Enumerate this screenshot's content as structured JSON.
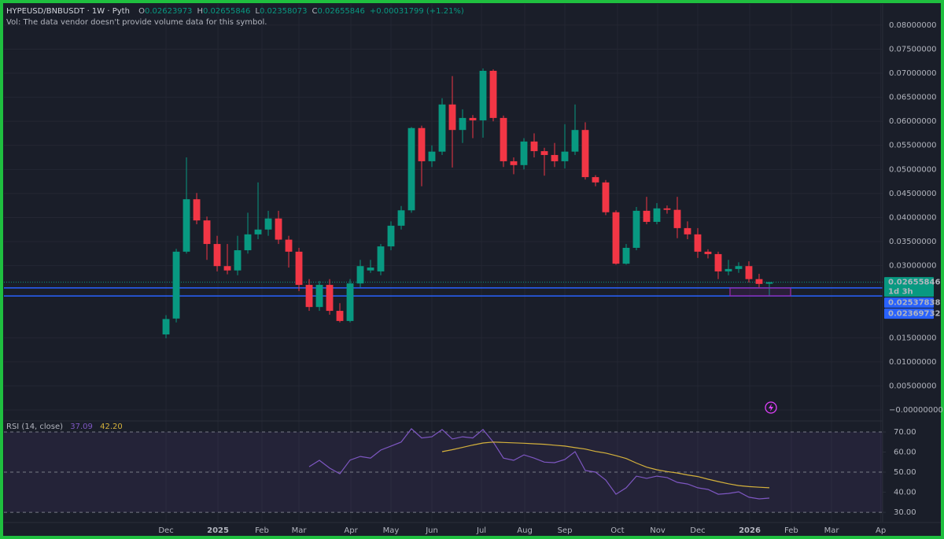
{
  "chart_data": {
    "type": "candlestick",
    "symbol": "HYPEUSD/BNBUSDT · 1W · Pyth",
    "ohlc_legend": [
      {
        "label": "O",
        "value": "0.02623973"
      },
      {
        "label": "H",
        "value": "0.02655846"
      },
      {
        "label": "L",
        "value": "0.02358073"
      },
      {
        "label": "C",
        "value": "0.02655846"
      }
    ],
    "change": "+0.00031799 (+1.21%)",
    "volume_note": "Vol: The data vendor doesn't provide volume data for this symbol.",
    "up_color": "#089981",
    "down_color": "#f23645",
    "open": [
      0.0157,
      0.019,
      0.0329,
      0.0438,
      0.0394,
      0.0345,
      0.0299,
      0.029,
      0.0332,
      0.0365,
      0.0375,
      0.0398,
      0.0354,
      0.0329,
      0.026,
      0.0214,
      0.026,
      0.0206,
      0.0185,
      0.0263,
      0.029,
      0.0288,
      0.034,
      0.0383,
      0.0415,
      0.0586,
      0.0517,
      0.0537,
      0.0635,
      0.0582,
      0.0607,
      0.0602,
      0.0705,
      0.0607,
      0.0517,
      0.0509,
      0.0558,
      0.0538,
      0.053,
      0.0517,
      0.0537,
      0.0582,
      0.0484,
      0.0473,
      0.0411,
      0.0304,
      0.0337,
      0.0414,
      0.0391,
      0.0419,
      0.0416,
      0.0378,
      0.0365,
      0.0329,
      0.0324,
      0.0288,
      0.0293,
      0.0299,
      0.0272,
      0.02623973
    ],
    "high": [
      0.0197,
      0.0335,
      0.0525,
      0.0451,
      0.0402,
      0.0362,
      0.0345,
      0.0362,
      0.041,
      0.0473,
      0.0414,
      0.0414,
      0.0362,
      0.0337,
      0.0272,
      0.0268,
      0.0272,
      0.0222,
      0.0272,
      0.0312,
      0.0312,
      0.0345,
      0.0392,
      0.0424,
      0.0588,
      0.0591,
      0.055,
      0.0648,
      0.0694,
      0.0625,
      0.0613,
      0.071,
      0.0708,
      0.0612,
      0.0525,
      0.0565,
      0.0575,
      0.0545,
      0.0555,
      0.0594,
      0.0635,
      0.0598,
      0.0488,
      0.0478,
      0.0415,
      0.0345,
      0.0422,
      0.0443,
      0.043,
      0.0425,
      0.0443,
      0.0392,
      0.0378,
      0.0334,
      0.0329,
      0.0312,
      0.0307,
      0.0309,
      0.0283,
      0.02655846
    ],
    "low": [
      0.0149,
      0.0182,
      0.0325,
      0.0386,
      0.0312,
      0.0288,
      0.0282,
      0.028,
      0.0325,
      0.0355,
      0.0362,
      0.0345,
      0.0296,
      0.0247,
      0.0206,
      0.0206,
      0.0198,
      0.0182,
      0.0182,
      0.0255,
      0.0285,
      0.028,
      0.0332,
      0.0375,
      0.041,
      0.0465,
      0.0505,
      0.053,
      0.0504,
      0.0555,
      0.0565,
      0.0566,
      0.06,
      0.0505,
      0.049,
      0.05,
      0.0525,
      0.0487,
      0.0505,
      0.0502,
      0.053,
      0.0479,
      0.0465,
      0.0405,
      0.0302,
      0.0302,
      0.0332,
      0.0386,
      0.0386,
      0.0408,
      0.0357,
      0.0355,
      0.0316,
      0.0315,
      0.0272,
      0.028,
      0.0285,
      0.0265,
      0.0255,
      0.02358073
    ],
    "close": [
      0.0189,
      0.0329,
      0.0438,
      0.0394,
      0.0345,
      0.0299,
      0.029,
      0.0332,
      0.0365,
      0.0375,
      0.0398,
      0.0354,
      0.0329,
      0.026,
      0.0214,
      0.026,
      0.0206,
      0.0185,
      0.0263,
      0.0299,
      0.0296,
      0.034,
      0.0383,
      0.0415,
      0.0586,
      0.0517,
      0.0537,
      0.0635,
      0.0582,
      0.0607,
      0.0602,
      0.0705,
      0.0607,
      0.0517,
      0.0509,
      0.0558,
      0.0538,
      0.053,
      0.0517,
      0.0537,
      0.0582,
      0.0484,
      0.0473,
      0.0411,
      0.0304,
      0.0337,
      0.0414,
      0.0391,
      0.0419,
      0.0416,
      0.0378,
      0.0365,
      0.0329,
      0.0324,
      0.0288,
      0.0293,
      0.0299,
      0.0272,
      0.0262,
      0.02655846
    ],
    "xlim": [
      -15.85,
      70.08
    ],
    "xticks": [
      {
        "value": 0,
        "label": "Dec"
      },
      {
        "value": 5.08,
        "label": "2025"
      },
      {
        "value": 9.38,
        "label": "Feb"
      },
      {
        "value": 13,
        "label": "Mar"
      },
      {
        "value": 18.08,
        "label": "Apr"
      },
      {
        "value": 22,
        "label": "May"
      },
      {
        "value": 26,
        "label": "Jun"
      },
      {
        "value": 30.85,
        "label": "Jul"
      },
      {
        "value": 35.08,
        "label": "Aug"
      },
      {
        "value": 39,
        "label": "Sep"
      },
      {
        "value": 44.15,
        "label": "Oct"
      },
      {
        "value": 48.08,
        "label": "Nov"
      },
      {
        "value": 52,
        "label": "Dec"
      },
      {
        "value": 57.08,
        "label": "2026"
      },
      {
        "value": 61.15,
        "label": "Feb"
      },
      {
        "value": 65.08,
        "label": "Mar"
      },
      {
        "value": 69.9,
        "label": "Ap"
      }
    ],
    "ylim": [
      -0.00229,
      0.0844
    ],
    "yticks": [
      {
        "value": 0.08,
        "label": "0.08000000"
      },
      {
        "value": 0.075,
        "label": "0.07500000"
      },
      {
        "value": 0.07,
        "label": "0.07000000"
      },
      {
        "value": 0.065,
        "label": "0.06500000"
      },
      {
        "value": 0.06,
        "label": "0.06000000"
      },
      {
        "value": 0.055,
        "label": "0.05500000"
      },
      {
        "value": 0.05,
        "label": "0.05000000"
      },
      {
        "value": 0.045,
        "label": "0.04500000"
      },
      {
        "value": 0.04,
        "label": "0.04000000"
      },
      {
        "value": 0.035,
        "label": "0.03500000"
      },
      {
        "value": 0.03,
        "label": "0.03000000"
      },
      {
        "value": 0.015,
        "label": "0.01500000"
      },
      {
        "value": 0.01,
        "label": "0.01000000"
      },
      {
        "value": 0.005,
        "label": "0.00500000"
      },
      {
        "value": 0,
        "label": "−0.00000000"
      }
    ],
    "grid": true,
    "current_price": {
      "value": 0.02655846,
      "label": "0.02655846",
      "countdown": "1d 3h",
      "color": "#089981"
    },
    "price_lines": [
      {
        "value": 0.02537838,
        "label": "0.02537838",
        "color": "#2962ff"
      },
      {
        "value": 0.02369732,
        "label": "0.02369732",
        "color": "#2962ff"
      }
    ],
    "rsi": {
      "title": "RSI (14, close)",
      "color": "#7e57c2",
      "values": [
        null,
        null,
        null,
        null,
        null,
        null,
        null,
        null,
        null,
        null,
        null,
        null,
        null,
        null,
        52.7,
        55.9,
        52,
        49.2,
        56,
        57.8,
        57,
        61,
        63,
        65,
        71.6,
        67,
        67.6,
        71.2,
        66.5,
        67.6,
        67,
        71.2,
        65,
        57,
        55.9,
        58.6,
        57,
        55,
        54.7,
        56.3,
        60.2,
        50.8,
        50,
        46.1,
        39,
        42.2,
        48,
        46.9,
        48,
        47.3,
        44.9,
        44.1,
        42.2,
        41.4,
        39,
        39.4,
        40.2,
        37.5,
        36.7,
        37.09
      ],
      "value_label": "37.09",
      "ma_color": "#d4b13c",
      "ma_values": [
        null,
        null,
        null,
        null,
        null,
        null,
        null,
        null,
        null,
        null,
        null,
        null,
        null,
        null,
        null,
        null,
        null,
        null,
        null,
        null,
        null,
        null,
        null,
        null,
        null,
        null,
        null,
        60.2,
        61.2,
        62.3,
        63.5,
        64.5,
        65,
        64.8,
        64.6,
        64.4,
        64.1,
        63.9,
        63.4,
        63,
        62.2,
        61.5,
        60.3,
        59.5,
        58.2,
        56.8,
        54.5,
        52.5,
        51.2,
        50.3,
        49.6,
        48.6,
        47.8,
        46.5,
        45.3,
        44.2,
        43.3,
        42.8,
        42.5,
        42.2
      ],
      "ma_value_label": "42.20",
      "ylim": [
        26.5,
        74.7
      ],
      "yticks": [
        {
          "value": 70,
          "label": "70.00"
        },
        {
          "value": 60,
          "label": "60.00"
        },
        {
          "value": 50,
          "label": "50.00"
        },
        {
          "value": 40,
          "label": "40.00"
        },
        {
          "value": 30,
          "label": "30.00"
        }
      ],
      "band": [
        30,
        70
      ],
      "dashed_levels": [
        70,
        50,
        30
      ]
    }
  }
}
